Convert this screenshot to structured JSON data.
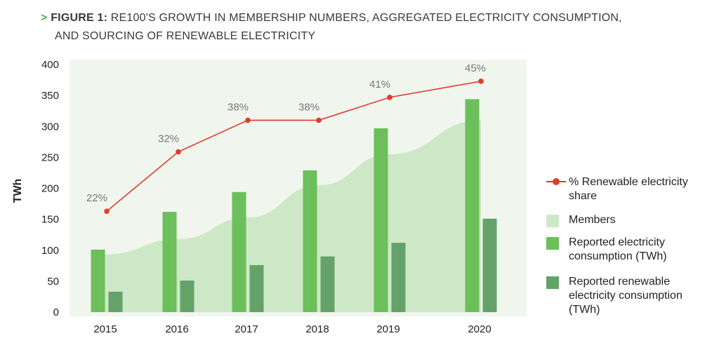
{
  "header": {
    "arrow": ">",
    "figure_label": "FIGURE 1:",
    "title_line1": "RE100'S GROWTH IN MEMBERSHIP NUMBERS, AGGREGATED ELECTRICITY CONSUMPTION,",
    "title_line2": "AND SOURCING OF RENEWABLE ELECTRICITY"
  },
  "colors": {
    "members_area": "#cde8c6",
    "plot_background": "#f0f6ee",
    "consumption_bar": "#6cbf5a",
    "renewable_bar": "#64a26a",
    "share_line": "#e33b2e"
  },
  "chart_data": {
    "type": "bar",
    "title": "RE100'S GROWTH IN MEMBERSHIP NUMBERS, AGGREGATED ELECTRICITY CONSUMPTION, AND SOURCING OF RENEWABLE ELECTRICITY",
    "xlabel": "",
    "ylabel": "TWh",
    "ylim": [
      0,
      400
    ],
    "yticks": [
      0,
      50,
      100,
      150,
      200,
      250,
      300,
      350,
      400
    ],
    "categories": [
      "2015",
      "2016",
      "2017",
      "2018",
      "2019",
      "2020"
    ],
    "series": [
      {
        "name": "Reported electricity consumption (TWh)",
        "kind": "bar",
        "values": [
          101,
          162,
          194,
          229,
          297,
          344
        ]
      },
      {
        "name": "Reported renewable electricity consumption (TWh)",
        "kind": "bar",
        "values": [
          33,
          51,
          76,
          90,
          112,
          151
        ]
      },
      {
        "name": "% Renewable electricity share",
        "kind": "line",
        "values": [
          163,
          259,
          310,
          310,
          347,
          373
        ],
        "labels": [
          "22%",
          "32%",
          "38%",
          "38%",
          "41%",
          "45%"
        ]
      },
      {
        "name": "Members",
        "kind": "area",
        "values": [
          93,
          118,
          153,
          205,
          255,
          310
        ]
      }
    ],
    "legend": [
      "% Renewable electricity share",
      "Members",
      "Reported electricity consumption (TWh)",
      "Reported renewable electricity consumption (TWh)"
    ],
    "legend_position": "right"
  }
}
